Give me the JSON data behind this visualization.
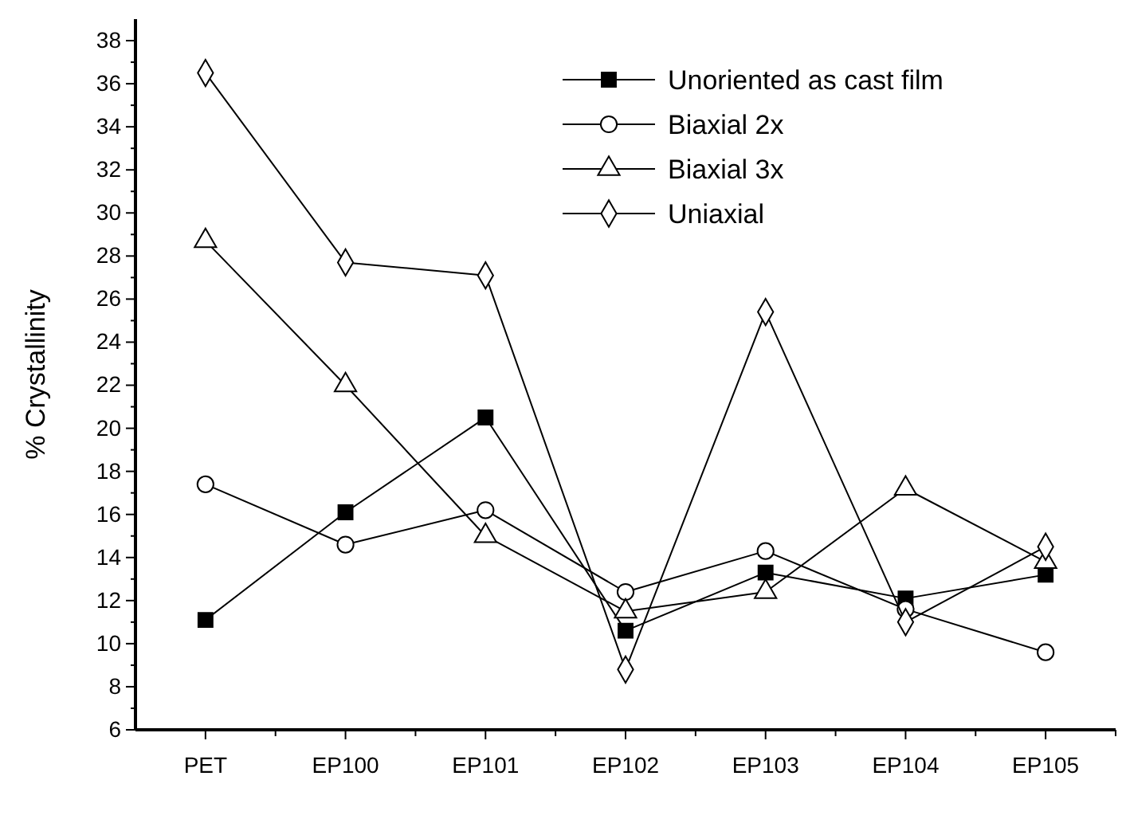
{
  "chart_data": {
    "type": "line",
    "ylabel": "% Crystallinity",
    "categories": [
      "PET",
      "EP100",
      "EP101",
      "EP102",
      "EP103",
      "EP104",
      "EP105"
    ],
    "ylim": [
      6,
      39
    ],
    "yticks": [
      6,
      8,
      10,
      12,
      14,
      16,
      18,
      20,
      22,
      24,
      26,
      28,
      30,
      32,
      34,
      36,
      38
    ],
    "grid": false,
    "legend": "top right",
    "line_style": "solid",
    "series": [
      {
        "name": "Unoriented as cast film",
        "color": "#000000",
        "marker": "square",
        "values": [
          11.1,
          16.1,
          20.5,
          10.6,
          13.3,
          12.1,
          13.2
        ]
      },
      {
        "name": "Biaxial 2x",
        "color": "#000000",
        "marker": "circle",
        "values": [
          17.4,
          14.6,
          16.2,
          12.4,
          14.3,
          11.6,
          9.6
        ]
      },
      {
        "name": "Biaxial 3x",
        "color": "#000000",
        "marker": "triangle",
        "values": [
          28.7,
          22.0,
          15.0,
          11.5,
          12.4,
          17.2,
          13.8
        ]
      },
      {
        "name": "Uniaxial",
        "color": "#000000",
        "marker": "diamond",
        "values": [
          36.5,
          27.7,
          27.1,
          8.8,
          25.4,
          11.0,
          14.5
        ]
      }
    ]
  }
}
